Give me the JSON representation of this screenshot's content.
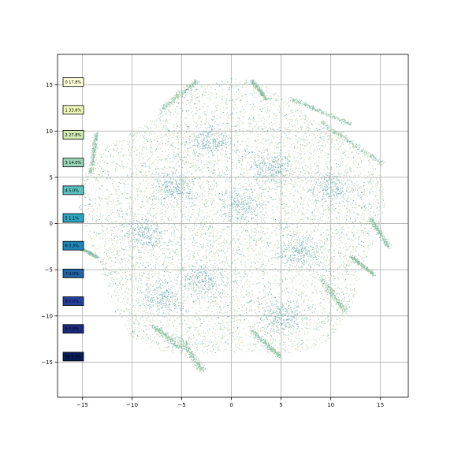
{
  "chart_data": {
    "type": "scatter",
    "title": "",
    "xlabel": "",
    "ylabel": "",
    "xlim": [
      -17.5,
      17.8
    ],
    "ylim": [
      -18.8,
      18.3
    ],
    "x_ticks": [
      -15,
      -10,
      -5,
      0,
      5,
      10,
      15
    ],
    "y_ticks": [
      -15,
      -10,
      -5,
      0,
      5,
      10,
      15
    ],
    "x_tick_labels": [
      "−15",
      "−10",
      "−5",
      "0",
      "5",
      "10",
      "15"
    ],
    "y_tick_labels": [
      "−15",
      "−10",
      "−5",
      "0",
      "5",
      "10",
      "15"
    ],
    "grid": true,
    "legend_placement": "left, stacked vertically along y-axis",
    "colormap": "YlGnBu",
    "point_colors": [
      "#d6d3ad",
      "#c9d6a4",
      "#b9d3a0",
      "#a3cc9c",
      "#8fc3a6",
      "#7db8ab",
      "#66a9ad",
      "#4f96a8"
    ],
    "point_cloud": {
      "center": [
        0,
        0
      ],
      "radius": 15.6,
      "description_hidden": true
    },
    "labels": [
      {
        "text": "0 17.8%",
        "y": 15.3,
        "color": "#ffffd9",
        "text_color": "#000000"
      },
      {
        "text": "1 33.8%",
        "y": 12.3,
        "color": "#f1f9b8",
        "text_color": "#000000"
      },
      {
        "text": "2 27.8%",
        "y": 9.6,
        "color": "#d0ecb3",
        "text_color": "#000000"
      },
      {
        "text": "3 14.0%",
        "y": 6.6,
        "color": "#97d6b8",
        "text_color": "#000000"
      },
      {
        "text": "4 5.0%",
        "y": 3.6,
        "color": "#5bc0c0",
        "text_color": "#000000"
      },
      {
        "text": "5 1.1%",
        "y": 0.6,
        "color": "#2ca5c2",
        "text_color": "#000000"
      },
      {
        "text": "6 0.3%",
        "y": -2.4,
        "color": "#1e86ba",
        "text_color": "#000000"
      },
      {
        "text": "7 0.0%",
        "y": -5.4,
        "color": "#2363a8",
        "text_color": "#000000"
      },
      {
        "text": "8 0.0%",
        "y": -8.4,
        "color": "#253e9a",
        "text_color": "#000000"
      },
      {
        "text": "9 0.0%",
        "y": -11.4,
        "color": "#1c2a80",
        "text_color": "#000000"
      },
      {
        "text": "10 0.0%",
        "y": -14.4,
        "color": "#081d58",
        "text_color": "#000000"
      }
    ]
  }
}
